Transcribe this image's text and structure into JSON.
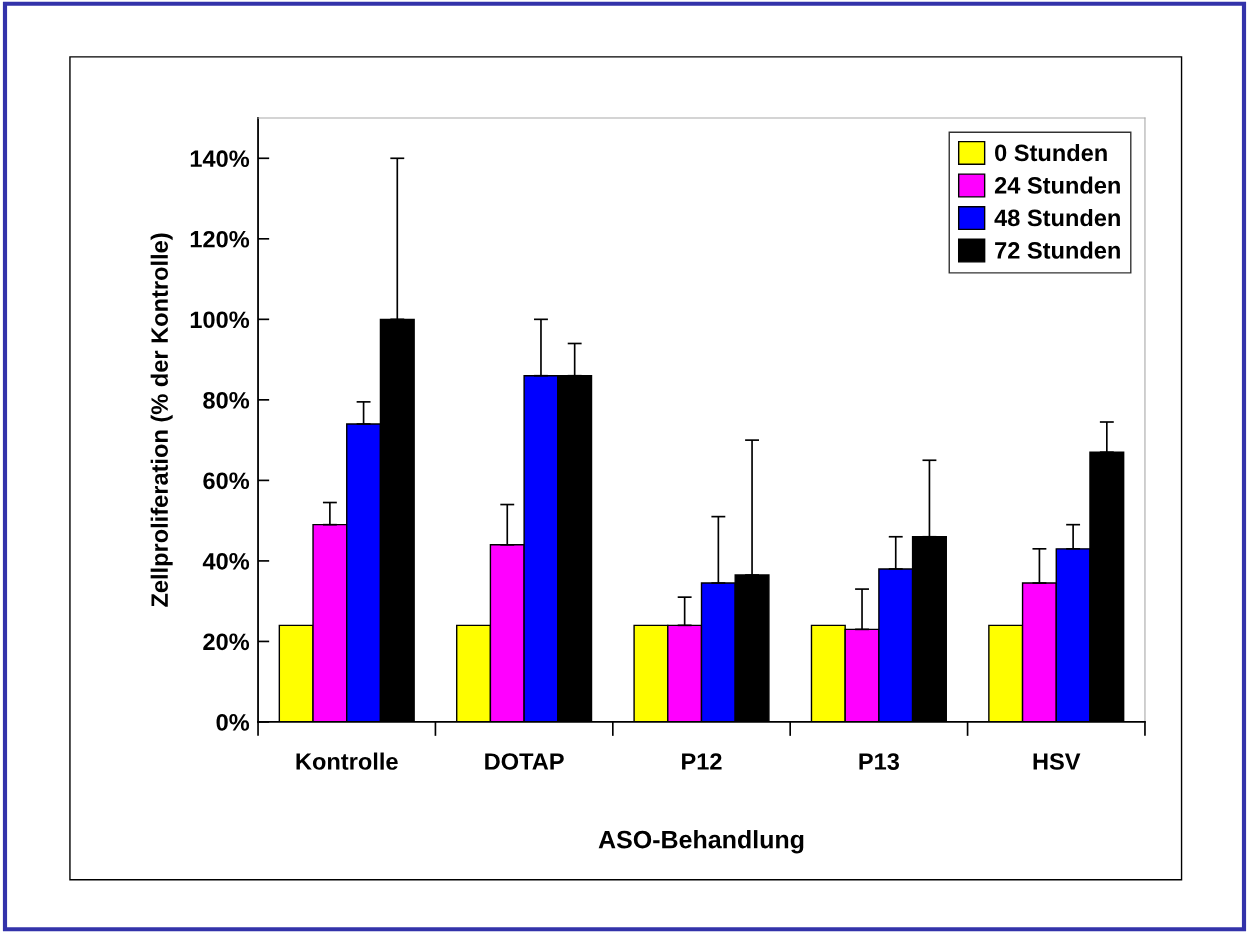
{
  "chart_data": {
    "type": "bar",
    "categories": [
      "Kontrolle",
      "DOTAP",
      "P12",
      "P13",
      "HSV"
    ],
    "xlabel": "ASO-Behandlung",
    "ylabel": "Zellproliferation (% der Kontrolle)",
    "ylim": [
      0,
      150
    ],
    "yticks": [
      {
        "value": 0,
        "label": "0%"
      },
      {
        "value": 20,
        "label": "20%"
      },
      {
        "value": 40,
        "label": "40%"
      },
      {
        "value": 60,
        "label": "60%"
      },
      {
        "value": 80,
        "label": "80%"
      },
      {
        "value": 100,
        "label": "100%"
      },
      {
        "value": 120,
        "label": "120%"
      },
      {
        "value": 140,
        "label": "140%"
      }
    ],
    "series": [
      {
        "name": "0 Stunden",
        "color": "#ffff00",
        "values": [
          24,
          24,
          24,
          24,
          24
        ]
      },
      {
        "name": "24 Stunden",
        "color": "#ff00ff",
        "values": [
          49,
          44,
          24,
          23,
          34.5
        ],
        "errors": [
          [
            49,
            54.5
          ],
          [
            44,
            54
          ],
          [
            24,
            31
          ],
          [
            23,
            33
          ],
          [
            34.5,
            43
          ]
        ]
      },
      {
        "name": "48 Stunden",
        "color": "#0000ff",
        "values": [
          74,
          86,
          34.5,
          38,
          43
        ],
        "errors": [
          [
            74,
            79.5
          ],
          [
            86,
            100
          ],
          [
            34.5,
            51
          ],
          [
            38,
            46
          ],
          [
            43,
            49
          ]
        ]
      },
      {
        "name": "72 Stunden",
        "color": "#000000",
        "values": [
          100,
          86,
          36.5,
          46,
          67
        ],
        "errors": [
          [
            100,
            140
          ],
          [
            86,
            94
          ],
          [
            36.5,
            70
          ],
          [
            46,
            65
          ],
          [
            67,
            74.5
          ]
        ]
      }
    ],
    "legend": "top right",
    "grid": false
  }
}
